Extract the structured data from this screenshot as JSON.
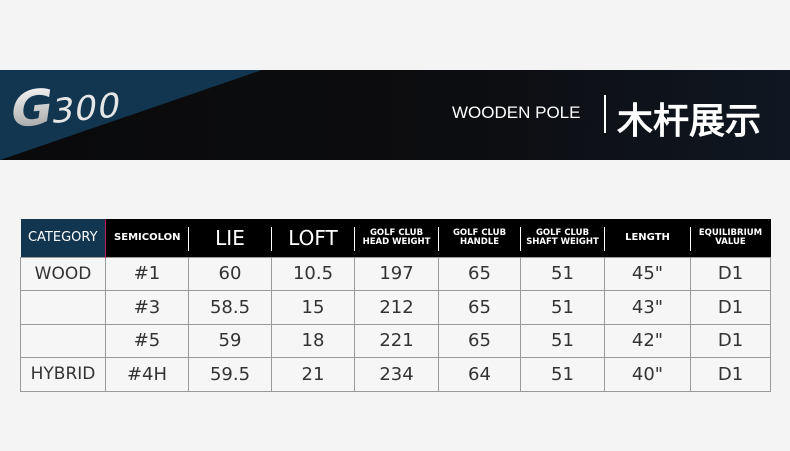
{
  "banner": {
    "logo": "G300",
    "logo_g": "G",
    "logo_num": "300",
    "title_en": "WOODEN POLE",
    "title_cn": "木杆展示",
    "accent": "#123650"
  },
  "table": {
    "headers": [
      "CATEGORY",
      "SEMICOLON",
      "LIE",
      "LOFT",
      "GOLF CLUB\nHEAD WEIGHT",
      "GOLF CLUB\nHANDLE",
      "GOLF CLUB\nSHAFT WEIGHT",
      "LENGTH",
      "EQUILIBRIUM\nVALUE"
    ],
    "rows": [
      [
        "WOOD",
        "#1",
        "60",
        "10.5",
        "197",
        "65",
        "51",
        "45\"",
        "D1"
      ],
      [
        "",
        "#3",
        "58.5",
        "15",
        "212",
        "65",
        "51",
        "43\"",
        "D1"
      ],
      [
        "",
        "#5",
        "59",
        "18",
        "221",
        "65",
        "51",
        "42\"",
        "D1"
      ],
      [
        "HYBRID",
        "#4H",
        "59.5",
        "21",
        "234",
        "64",
        "51",
        "40\"",
        "D1"
      ]
    ]
  }
}
